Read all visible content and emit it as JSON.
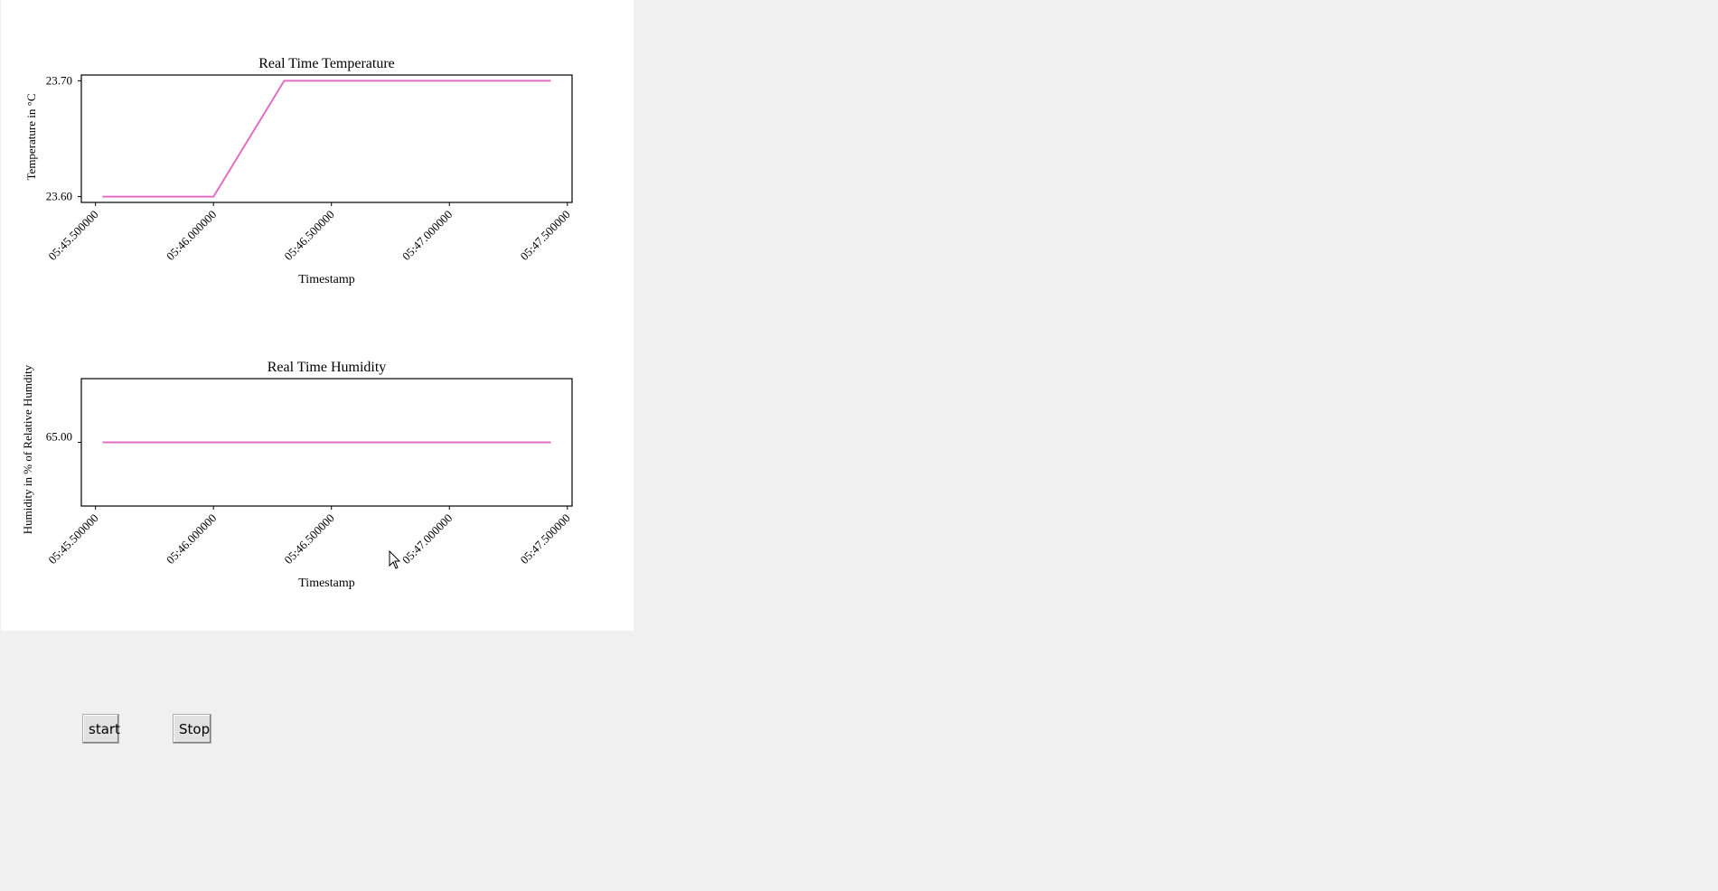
{
  "charts": {
    "line_color": "#e26ec3",
    "chart_data": [
      {
        "type": "line",
        "title": "Real Time Temperature",
        "xlabel": "Timestamp",
        "ylabel": "Temperature in °C",
        "x_ticks": [
          "05:45.500000",
          "05:46.000000",
          "05:46.500000",
          "05:47.000000",
          "05:47.500000"
        ],
        "y_ticks": [
          "23.60",
          "23.70"
        ],
        "x": [
          45.53,
          46.0,
          46.3,
          47.43
        ],
        "y": [
          23.6,
          23.6,
          23.7,
          23.7
        ],
        "xlim": [
          45.44,
          47.52
        ],
        "ylim": [
          23.595,
          23.705
        ],
        "grid": false
      },
      {
        "type": "line",
        "title": "Real Time Humidity",
        "xlabel": "Timestamp",
        "ylabel": "Humidity in % of Relative Humdity",
        "x_ticks": [
          "05:45.500000",
          "05:46.000000",
          "05:46.500000",
          "05:47.000000",
          "05:47.500000"
        ],
        "y_ticks": [
          "65.00"
        ],
        "x": [
          45.53,
          47.43
        ],
        "y": [
          65.0,
          65.0
        ],
        "xlim": [
          45.44,
          47.52
        ],
        "ylim": [
          64.995,
          65.005
        ],
        "grid": false
      }
    ]
  },
  "buttons": {
    "start_label": "start",
    "stop_label": "Stop"
  }
}
